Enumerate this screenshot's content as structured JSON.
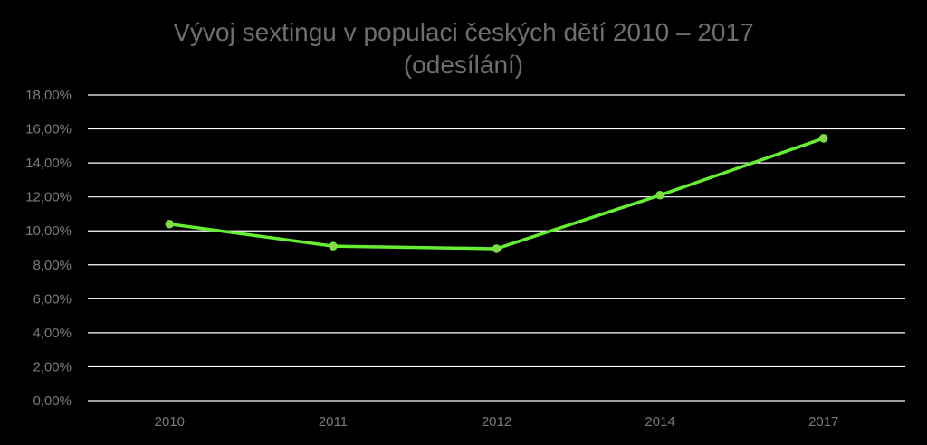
{
  "chart_data": {
    "type": "line",
    "title": "Vývoj sextingu v populaci českých dětí 2010 – 2017",
    "subtitle": "(odesílání)",
    "categories": [
      "2010",
      "2011",
      "2012",
      "2014",
      "2017"
    ],
    "series": [
      {
        "values": [
          10.4,
          9.1,
          8.95,
          12.1,
          15.45
        ],
        "color": "#66ee33",
        "marker_color": "#8fd14f"
      }
    ],
    "ylim": [
      0,
      18
    ],
    "y_ticks": [
      0,
      2,
      4,
      6,
      8,
      10,
      12,
      14,
      16,
      18
    ],
    "y_tick_labels": [
      "0,00%",
      "2,00%",
      "4,00%",
      "6,00%",
      "8,00%",
      "10,00%",
      "12,00%",
      "14,00%",
      "16,00%",
      "18,00%"
    ],
    "grid": true,
    "legend": "none"
  }
}
